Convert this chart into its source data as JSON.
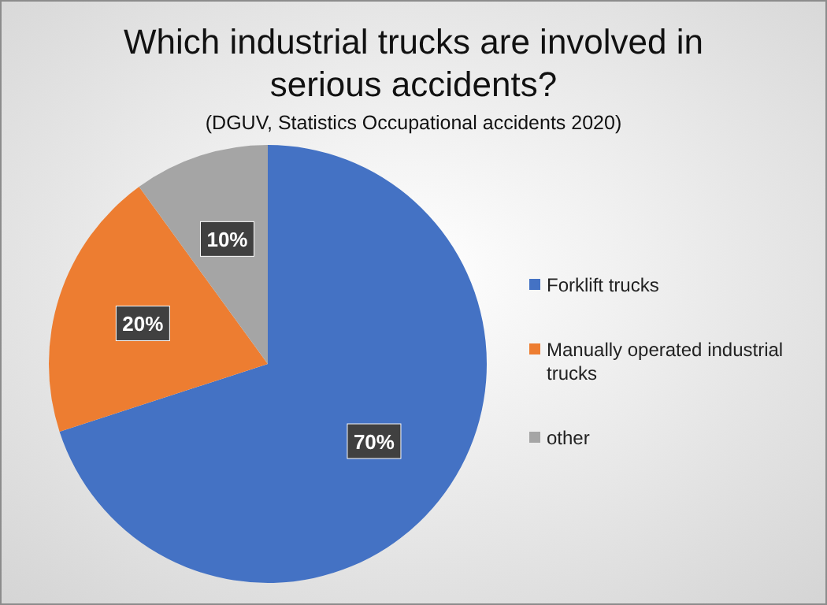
{
  "chart_data": {
    "type": "pie",
    "title": "Which industrial trucks are involved in serious accidents?",
    "subtitle": "(DGUV, Statistics Occupational accidents 2020)",
    "categories": [
      "Forklift trucks",
      "Manually operated industrial trucks",
      "other"
    ],
    "values": [
      70,
      20,
      10
    ],
    "colors": [
      "#4472c4",
      "#ed7d31",
      "#a5a5a5"
    ],
    "value_labels": [
      "70%",
      "20%",
      "10%"
    ],
    "legend": "right"
  }
}
